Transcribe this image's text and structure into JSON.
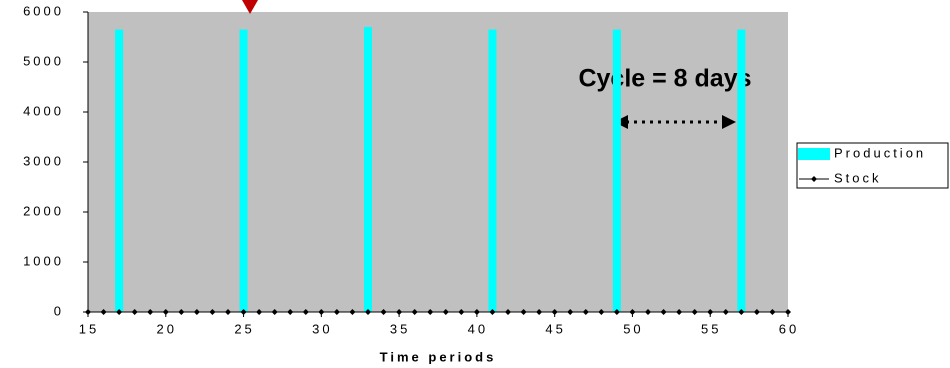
{
  "chart_data": {
    "type": "combo",
    "xlabel": "Time periods",
    "xlim": [
      15,
      60
    ],
    "xticks": [
      15,
      20,
      25,
      30,
      35,
      40,
      45,
      50,
      55,
      60
    ],
    "ylim": [
      0,
      6000
    ],
    "yticks": [
      0,
      1000,
      2000,
      3000,
      4000,
      5000,
      6000
    ],
    "legend": "right",
    "annotations": [
      {
        "text": "Cycle = 8 days"
      }
    ],
    "series": [
      {
        "name": "Production",
        "type": "bar",
        "color": "#00ffff",
        "x": [
          17,
          25,
          33,
          41,
          49,
          57
        ],
        "values": [
          5650,
          5650,
          5700,
          5650,
          5650,
          5650
        ]
      },
      {
        "name": "Stock",
        "type": "line",
        "color": "#000000",
        "x": [
          15,
          16,
          17,
          18,
          19,
          20,
          21,
          22,
          23,
          24,
          25,
          26,
          27,
          28,
          29,
          30,
          31,
          32,
          33,
          34,
          35,
          36,
          37,
          38,
          39,
          40,
          41,
          42,
          43,
          44,
          45,
          46,
          47,
          48,
          49,
          50,
          51,
          52,
          53,
          54,
          55,
          56,
          57,
          58,
          59,
          60
        ],
        "values": [
          0,
          0,
          0,
          0,
          0,
          0,
          0,
          0,
          0,
          0,
          0,
          0,
          0,
          0,
          0,
          0,
          0,
          0,
          0,
          0,
          0,
          0,
          0,
          0,
          0,
          0,
          0,
          0,
          0,
          0,
          0,
          0,
          0,
          0,
          0,
          0,
          0,
          0,
          0,
          0,
          0,
          0,
          0,
          0,
          0,
          0
        ]
      }
    ]
  }
}
